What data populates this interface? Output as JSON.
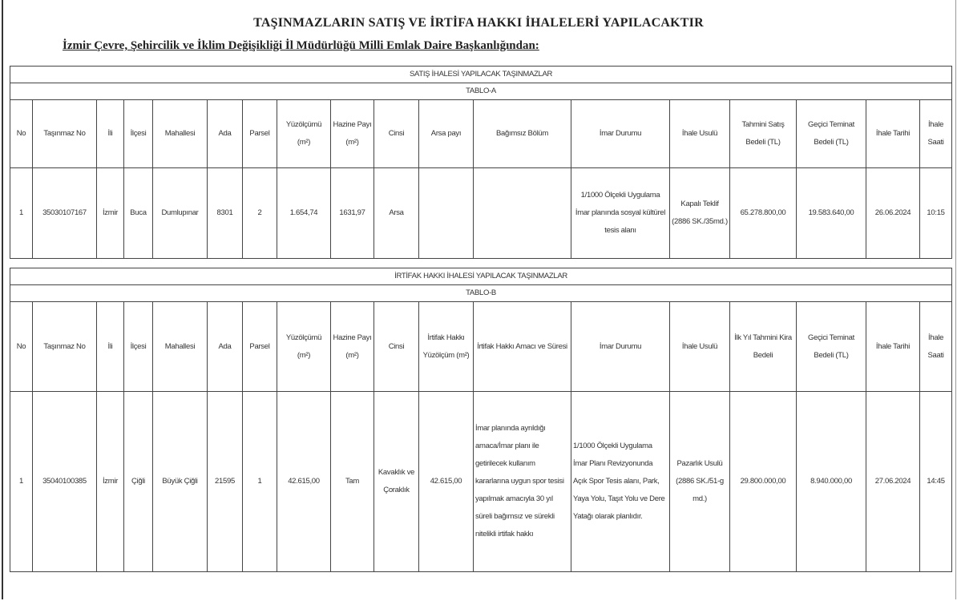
{
  "title": "TAŞINMAZLARIN SATIŞ VE İRTİFA HAKKI İHALELERİ YAPILACAKTIR",
  "subtitle": "İzmir Çevre, Şehircilik ve İklim Değişikliği İl Müdürlüğü Milli Emlak Daire Başkanlığından:",
  "table_a": {
    "section": "SATIŞ İHALESİ YAPILACAK TAŞINMAZLAR",
    "label": "TABLO-A",
    "headers": [
      "No",
      "Taşınmaz No",
      "İli",
      "İlçesi",
      "Mahallesi",
      "Ada",
      "Parsel",
      "Yüzölçümü (m²)",
      "Hazine Payı (m²)",
      "Cinsi",
      "Arsa payı",
      "Bağımsız Bölüm",
      "İmar Durumu",
      "İhale Usulü",
      "Tahmini Satış Bedeli (TL)",
      "Geçici Teminat Bedeli (TL)",
      "İhale Tarihi",
      "İhale Saati"
    ],
    "rows": [
      [
        "1",
        "35030107167",
        "İzmir",
        "Buca",
        "Dumlupınar",
        "8301",
        "2",
        "1.654,74",
        "1631,97",
        "Arsa",
        "",
        "",
        "1/1000 Ölçekli Uygulama İmar planında sosyal kültürel tesis alanı",
        "Kapalı Teklif (2886 SK./35md.)",
        "65.278.800,00",
        "19.583.640,00",
        "26.06.2024",
        "10:15"
      ]
    ]
  },
  "table_b": {
    "section": "İRTİFAK HAKKI İHALESİ YAPILACAK TAŞINMAZLAR",
    "label": "TABLO-B",
    "headers": [
      "No",
      "Taşınmaz No",
      "İli",
      "İlçesi",
      "Mahallesi",
      "Ada",
      "Parsel",
      "Yüzölçümü (m²)",
      "Hazine Payı (m²)",
      "Cinsi",
      "İrtifak Hakkı Yüzölçüm (m²)",
      "İrtifak Hakkı Amacı ve Süresi",
      "İmar Durumu",
      "İhale Usulü",
      "İlk Yıl Tahmini Kira Bedeli",
      "Geçici Teminat Bedeli (TL)",
      "İhale Tarihi",
      "İhale Saati"
    ],
    "rows": [
      [
        "1",
        "35040100385",
        "İzmir",
        "Çiğli",
        "Büyük Çiğli",
        "21595",
        "1",
        "42.615,00",
        "Tam",
        "Kavaklık ve Çoraklık",
        "42.615,00",
        "İmar planında ayrıldığı amaca/İmar planı ile getirilecek kullanım kararlarına uygun spor tesisi yapılmak amacıyla 30 yıl süreli bağımsız ve sürekli nitelikli irtifak hakkı",
        "1/1000 Ölçekli Uygulama İmar Planı Revizyonunda Açık Spor Tesis alanı, Park, Yaya Yolu, Taşıt Yolu ve Dere Yatağı olarak planlıdır.",
        "Pazarlık Usulü (2886 SK./51-g md.)",
        "29.800.000,00",
        "8.940.000,00",
        "27.06.2024",
        "14:45"
      ]
    ]
  }
}
